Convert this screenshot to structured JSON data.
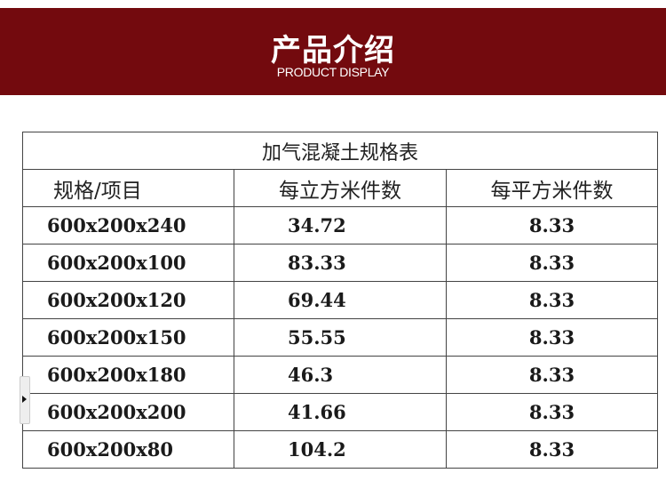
{
  "banner": {
    "title": "产品介绍",
    "subtitle": "PRODUCT DISPLAY",
    "color": "#730a0e"
  },
  "table": {
    "caption": "加气混凝土规格表",
    "headers": [
      "规格/项目",
      "每立方米件数",
      "每平方米件数"
    ],
    "rows": [
      [
        "600x200x240",
        "34.72",
        "8.33"
      ],
      [
        "600x200x100",
        "83.33",
        "8.33"
      ],
      [
        "600x200x120",
        "69.44",
        "8.33"
      ],
      [
        "600x200x150",
        "55.55",
        "8.33"
      ],
      [
        "600x200x180",
        "46.3",
        "8.33"
      ],
      [
        "600x200x200",
        "41.66",
        "8.33"
      ],
      [
        "600x200x80",
        "104.2",
        "8.33"
      ]
    ]
  }
}
